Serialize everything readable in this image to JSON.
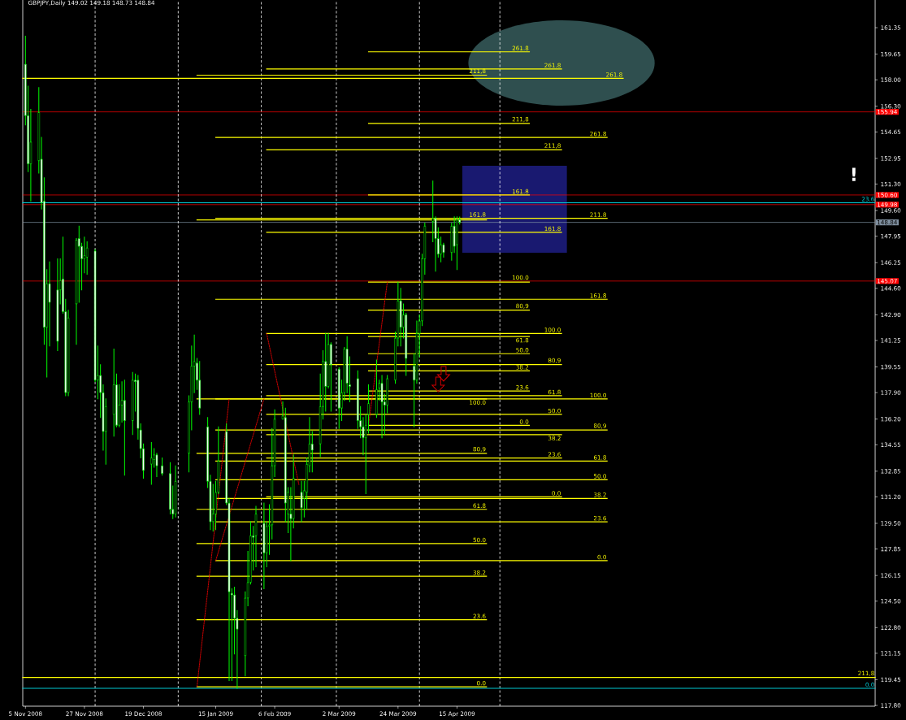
{
  "chart_data": {
    "type": "candlestick",
    "title": "GBPJPY,Daily 149.02 149.18 148.73 148.84",
    "color": "#00ff00",
    "x": [
      "2008-11-05",
      "2008-11-06",
      "2008-11-07",
      "2008-11-10",
      "2008-11-11",
      "2008-11-12",
      "2008-11-13",
      "2008-11-14",
      "2008-11-17",
      "2008-11-18",
      "2008-11-19",
      "2008-11-20",
      "2008-11-21",
      "2008-11-24",
      "2008-11-25",
      "2008-11-26",
      "2008-11-27",
      "2008-11-28",
      "2008-12-01",
      "2008-12-02",
      "2008-12-03",
      "2008-12-04",
      "2008-12-05",
      "2008-12-08",
      "2008-12-09",
      "2008-12-10",
      "2008-12-11",
      "2008-12-12",
      "2008-12-15",
      "2008-12-16",
      "2008-12-17",
      "2008-12-18",
      "2008-12-19",
      "2008-12-22",
      "2008-12-23",
      "2008-12-24",
      "2008-12-26",
      "2008-12-29",
      "2008-12-30",
      "2008-12-31",
      "2009-01-05",
      "2009-01-06",
      "2009-01-07",
      "2009-01-08",
      "2009-01-09",
      "2009-01-12",
      "2009-01-13",
      "2009-01-14",
      "2009-01-15",
      "2009-01-16",
      "2009-01-19",
      "2009-01-20",
      "2009-01-21",
      "2009-01-22",
      "2009-01-23",
      "2009-01-26",
      "2009-01-27",
      "2009-01-28",
      "2009-01-29",
      "2009-01-30",
      "2009-02-02",
      "2009-02-03",
      "2009-02-04",
      "2009-02-05",
      "2009-02-06",
      "2009-02-09",
      "2009-02-10",
      "2009-02-11",
      "2009-02-12",
      "2009-02-13",
      "2009-02-16",
      "2009-02-17",
      "2009-02-18",
      "2009-02-19",
      "2009-02-20",
      "2009-02-23",
      "2009-02-24",
      "2009-02-25",
      "2009-02-26",
      "2009-02-27",
      "2009-03-02",
      "2009-03-03",
      "2009-03-04",
      "2009-03-05",
      "2009-03-06",
      "2009-03-09",
      "2009-03-10",
      "2009-03-11",
      "2009-03-12",
      "2009-03-13",
      "2009-03-16",
      "2009-03-17",
      "2009-03-18",
      "2009-03-19",
      "2009-03-20",
      "2009-03-23",
      "2009-03-24",
      "2009-03-25",
      "2009-03-26",
      "2009-03-27",
      "2009-03-30",
      "2009-03-31",
      "2009-04-01",
      "2009-04-02",
      "2009-04-03",
      "2009-04-06",
      "2009-04-07",
      "2009-04-08",
      "2009-04-09",
      "2009-04-10",
      "2009-04-13",
      "2009-04-14",
      "2009-04-15",
      "2009-04-16"
    ],
    "ohlc": [
      [
        159.0,
        160.8,
        155.1,
        155.7
      ],
      [
        155.7,
        157.6,
        152.1,
        152.6
      ],
      [
        152.6,
        156.1,
        150.2,
        154.0
      ],
      [
        152.8,
        157.5,
        152.0,
        155.9
      ],
      [
        152.9,
        154.3,
        149.7,
        150.1
      ],
      [
        150.2,
        151.7,
        141.0,
        142.1
      ],
      [
        142.1,
        145.8,
        138.9,
        144.9
      ],
      [
        144.9,
        146.3,
        140.9,
        143.7
      ],
      [
        144.5,
        146.5,
        140.6,
        141.2
      ],
      [
        144.5,
        146.5,
        143.6,
        145.1
      ],
      [
        145.2,
        147.9,
        143.0,
        143.1
      ],
      [
        143.1,
        143.9,
        137.7,
        137.9
      ],
      [
        137.9,
        143.2,
        137.7,
        142.7
      ],
      [
        143.6,
        147.8,
        141.0,
        147.7
      ],
      [
        147.8,
        148.6,
        143.7,
        147.3
      ],
      [
        147.3,
        147.5,
        144.5,
        146.5
      ],
      [
        146.5,
        147.9,
        145.6,
        146.7
      ],
      [
        146.6,
        147.6,
        145.5,
        147.2
      ],
      [
        147.0,
        147.1,
        138.6,
        138.7
      ],
      [
        138.7,
        140.9,
        137.5,
        139.0
      ],
      [
        139.0,
        139.7,
        136.3,
        137.9
      ],
      [
        137.9,
        138.4,
        134.2,
        135.4
      ],
      [
        135.4,
        137.5,
        133.3,
        137.0
      ],
      [
        136.5,
        140.7,
        135.1,
        138.4
      ],
      [
        138.4,
        139.1,
        135.7,
        135.8
      ],
      [
        135.8,
        138.4,
        135.7,
        137.1
      ],
      [
        137.1,
        138.6,
        136.0,
        137.4
      ],
      [
        137.4,
        138.7,
        132.6,
        136.1
      ],
      [
        136.1,
        139.2,
        135.2,
        138.7
      ],
      [
        138.7,
        139.1,
        136.7,
        138.6
      ],
      [
        138.7,
        139.0,
        134.9,
        135.6
      ],
      [
        135.5,
        135.9,
        133.7,
        134.3
      ],
      [
        134.3,
        134.6,
        132.4,
        132.9
      ],
      [
        133.3,
        134.7,
        132.0,
        133.7
      ],
      [
        133.6,
        134.3,
        133.1,
        133.9
      ],
      [
        133.9,
        134.0,
        132.5,
        133.2
      ],
      [
        133.2,
        133.7,
        132.6,
        132.7
      ],
      [
        132.7,
        133.4,
        130.1,
        130.4
      ],
      [
        130.4,
        131.9,
        129.8,
        130.1
      ],
      [
        130.1,
        133.2,
        129.9,
        132.2
      ],
      [
        134.0,
        137.7,
        132.8,
        137.3
      ],
      [
        137.3,
        140.9,
        135.5,
        139.6
      ],
      [
        139.6,
        141.6,
        137.9,
        139.9
      ],
      [
        139.8,
        140.1,
        138.1,
        138.7
      ],
      [
        138.7,
        139.9,
        136.5,
        136.9
      ],
      [
        135.7,
        136.3,
        131.8,
        132.2
      ],
      [
        132.2,
        132.6,
        129.1,
        129.6
      ],
      [
        129.6,
        132.0,
        129.0,
        130.1
      ],
      [
        130.1,
        132.2,
        129.1,
        131.5
      ],
      [
        131.5,
        135.7,
        131.4,
        133.5
      ],
      [
        135.4,
        135.9,
        130.7,
        130.8
      ],
      [
        130.8,
        131.1,
        119.4,
        125.1
      ],
      [
        125.0,
        125.3,
        119.4,
        124.9
      ],
      [
        124.9,
        125.4,
        121.1,
        123.4
      ],
      [
        123.4,
        123.9,
        118.9,
        122.7
      ],
      [
        121.0,
        125.1,
        119.7,
        124.7
      ],
      [
        124.7,
        127.7,
        124.2,
        125.7
      ],
      [
        125.7,
        129.6,
        125.6,
        128.7
      ],
      [
        128.7,
        129.3,
        126.5,
        128.6
      ],
      [
        128.7,
        130.6,
        126.7,
        130.1
      ],
      [
        129.5,
        130.8,
        125.3,
        127.6
      ],
      [
        127.6,
        129.6,
        126.7,
        129.3
      ],
      [
        129.3,
        130.7,
        127.5,
        129.4
      ],
      [
        129.4,
        135.6,
        128.5,
        133.2
      ],
      [
        133.2,
        136.8,
        132.5,
        136.2
      ],
      [
        136.2,
        137.3,
        136.2,
        136.4
      ],
      [
        136.3,
        136.9,
        129.6,
        130.8
      ],
      [
        130.1,
        131.8,
        128.9,
        131.5
      ],
      [
        130.1,
        131.8,
        127.1,
        129.8
      ],
      [
        129.8,
        133.9,
        129.2,
        132.4
      ],
      [
        131.5,
        132.2,
        129.6,
        130.5
      ],
      [
        131.1,
        132.2,
        129.9,
        131.6
      ],
      [
        131.5,
        133.7,
        130.4,
        133.3
      ],
      [
        133.2,
        136.3,
        132.8,
        134.6
      ],
      [
        134.6,
        135.4,
        132.8,
        134.2
      ],
      [
        134.6,
        139.1,
        133.8,
        137.0
      ],
      [
        137.0,
        140.6,
        136.2,
        139.9
      ],
      [
        139.9,
        141.7,
        136.7,
        138.3
      ],
      [
        138.3,
        141.7,
        138.2,
        141.0
      ],
      [
        141.0,
        141.1,
        136.7,
        139.7
      ],
      [
        139.4,
        139.5,
        135.6,
        136.9
      ],
      [
        136.9,
        138.7,
        136.1,
        137.9
      ],
      [
        137.9,
        140.8,
        137.4,
        140.7
      ],
      [
        140.7,
        141.5,
        137.9,
        138.5
      ],
      [
        138.4,
        140.2,
        137.3,
        138.3
      ],
      [
        138.8,
        139.3,
        135.6,
        136.1
      ],
      [
        136.1,
        137.0,
        135.0,
        135.7
      ],
      [
        135.7,
        136.3,
        133.9,
        135.0
      ],
      [
        135.0,
        136.5,
        131.4,
        135.8
      ],
      [
        136.5,
        138.4,
        135.3,
        137.2
      ],
      [
        136.5,
        140.0,
        136.3,
        138.1
      ],
      [
        138.2,
        138.7,
        137.4,
        138.5
      ],
      [
        138.5,
        139.0,
        135.0,
        137.3
      ],
      [
        137.3,
        137.8,
        135.2,
        137.1
      ],
      [
        137.1,
        139.0,
        136.6,
        138.8
      ],
      [
        138.7,
        141.8,
        138.5,
        141.4
      ],
      [
        141.4,
        145.0,
        140.9,
        143.8
      ],
      [
        143.8,
        144.6,
        140.9,
        142.1
      ],
      [
        142.1,
        143.6,
        141.4,
        142.9
      ],
      [
        142.9,
        143.0,
        139.0,
        140.1
      ],
      [
        139.6,
        140.4,
        135.7,
        138.7
      ],
      [
        138.7,
        142.5,
        138.5,
        141.7
      ],
      [
        141.7,
        142.9,
        140.2,
        142.5
      ],
      [
        142.5,
        146.8,
        142.2,
        146.5
      ],
      [
        146.5,
        148.8,
        145.5,
        148.6
      ],
      [
        148.9,
        151.5,
        147.6,
        149.1
      ],
      [
        149.1,
        149.2,
        145.7,
        147.8
      ],
      [
        147.8,
        148.5,
        146.6,
        146.8
      ],
      [
        146.8,
        147.9,
        146.3,
        147.4
      ],
      [
        147.4,
        147.5,
        146.6,
        146.9
      ],
      [
        146.9,
        148.8,
        146.4,
        148.6
      ],
      [
        148.6,
        149.2,
        146.9,
        147.3
      ],
      [
        147.4,
        149.2,
        145.8,
        149.0
      ],
      [
        149.02,
        149.18,
        148.73,
        148.84
      ]
    ],
    "xlim": [
      "2008-11-04",
      "2009-09-18"
    ],
    "xticks": [
      {
        "value": "2008-11-05",
        "label": "5 Nov 2008"
      },
      {
        "value": "2008-11-27",
        "label": "27 Nov 2008"
      },
      {
        "value": "2008-12-19",
        "label": "19 Dec 2008"
      },
      {
        "value": "2009-01-15",
        "label": "15 Jan 2009"
      },
      {
        "value": "2009-02-06",
        "label": "6 Feb 2009"
      },
      {
        "value": "2009-03-02",
        "label": "2 Mar 2009"
      },
      {
        "value": "2009-03-24",
        "label": "24 Mar 2009"
      },
      {
        "value": "2009-04-15",
        "label": "15 Apr 2009"
      }
    ],
    "ylim": [
      117.75,
      163.13
    ],
    "yticks": [
      161.35,
      159.65,
      {
        "value": 158,
        "label": "158.00"
      },
      {
        "value": 156.3,
        "label": "156.30"
      },
      154.65,
      152.95,
      {
        "value": 151.3,
        "label": "151.30"
      },
      {
        "value": 149.6,
        "label": "149.60"
      },
      147.95,
      146.25,
      {
        "value": 144.6,
        "label": "144.60"
      },
      {
        "value": 142.9,
        "label": "142.90"
      },
      141.25,
      139.55,
      {
        "value": 137.9,
        "label": "137.90"
      },
      {
        "value": 136.2,
        "label": "136.20"
      },
      134.55,
      132.85,
      {
        "value": 131.2,
        "label": "131.20"
      },
      {
        "value": 129.5,
        "label": "129.50"
      },
      127.85,
      126.15,
      {
        "value": 124.5,
        "label": "124.50"
      },
      {
        "value": 122.8,
        "label": "122.80"
      },
      121.15,
      119.45,
      {
        "value": 117.8,
        "label": "117.80"
      }
    ],
    "series": [
      {
        "type": "line",
        "name": "0.0",
        "color": "#ffff00",
        "x": [
          "2009-01-08",
          "2009-04-26"
        ],
        "values": [
          119.0,
          119.0
        ]
      },
      {
        "type": "line",
        "name": "23.6",
        "color": "#ffff00",
        "x": [
          "2009-01-08",
          "2009-04-26"
        ],
        "values": [
          123.3,
          123.3
        ]
      },
      {
        "type": "line",
        "name": "38.2",
        "color": "#ffff00",
        "x": [
          "2009-01-08",
          "2009-04-26"
        ],
        "values": [
          126.1,
          126.1
        ]
      },
      {
        "type": "line",
        "name": "50.0",
        "color": "#ffff00",
        "x": [
          "2009-01-08",
          "2009-04-26"
        ],
        "values": [
          128.2,
          128.2
        ]
      },
      {
        "type": "line",
        "name": "61.8",
        "color": "#ffff00",
        "x": [
          "2009-01-08",
          "2009-04-26"
        ],
        "values": [
          130.4,
          130.4
        ]
      },
      {
        "type": "line",
        "name": "80,9",
        "color": "#ffff00",
        "x": [
          "2009-01-08",
          "2009-04-26"
        ],
        "values": [
          134.0,
          134.0
        ]
      },
      {
        "type": "line",
        "name": "100.0",
        "color": "#ffff00",
        "x": [
          "2009-01-08",
          "2009-04-26"
        ],
        "values": [
          137.5,
          137.5
        ]
      },
      {
        "type": "line",
        "name": "161.8",
        "color": "#ffff00",
        "x": [
          "2009-01-08",
          "2009-04-26"
        ],
        "values": [
          149.0,
          149.0
        ]
      },
      {
        "type": "line",
        "name": "211,8",
        "color": "#ffff00",
        "x": [
          "2009-01-08",
          "2009-04-26"
        ],
        "values": [
          158.3,
          158.3
        ]
      },
      {
        "type": "line",
        "name": "0.0",
        "color": "#ffff00",
        "x": [
          "2009-03-13",
          "2009-05-12"
        ],
        "values": [
          135.8,
          135.8
        ]
      },
      {
        "type": "line",
        "name": "23.6",
        "color": "#ffff00",
        "x": [
          "2009-03-13",
          "2009-05-12"
        ],
        "values": [
          138.0,
          138.0
        ]
      },
      {
        "type": "line",
        "name": "38.2",
        "color": "#ffff00",
        "x": [
          "2009-03-13",
          "2009-05-12"
        ],
        "values": [
          139.3,
          139.3
        ]
      },
      {
        "type": "line",
        "name": "50.0",
        "color": "#ffff00",
        "x": [
          "2009-03-13",
          "2009-05-12"
        ],
        "values": [
          140.4,
          140.4
        ]
      },
      {
        "type": "line",
        "name": "61.8",
        "color": "#ffff00",
        "x": [
          "2009-03-13",
          "2009-05-12"
        ],
        "values": [
          141.5,
          141.5
        ]
      },
      {
        "type": "line",
        "name": "80,9",
        "color": "#ffff00",
        "x": [
          "2009-03-13",
          "2009-05-12"
        ],
        "values": [
          143.2,
          143.2
        ]
      },
      {
        "type": "line",
        "name": "100.0",
        "color": "#ffff00",
        "x": [
          "2009-03-13",
          "2009-05-12"
        ],
        "values": [
          145.0,
          145.0
        ]
      },
      {
        "type": "line",
        "name": "161.8",
        "color": "#ffff00",
        "x": [
          "2009-03-13",
          "2009-05-12"
        ],
        "values": [
          150.6,
          150.6
        ]
      },
      {
        "type": "line",
        "name": "211,8",
        "color": "#ffff00",
        "x": [
          "2009-03-13",
          "2009-05-12"
        ],
        "values": [
          155.2,
          155.2
        ]
      },
      {
        "type": "line",
        "name": "261.8",
        "color": "#ffff00",
        "x": [
          "2009-03-13",
          "2009-05-12"
        ],
        "values": [
          159.8,
          159.8
        ]
      },
      {
        "type": "line",
        "name": "0.0",
        "color": "#ffff00",
        "x": [
          "2009-02-03",
          "2009-05-24"
        ],
        "values": [
          131.2,
          131.2
        ]
      },
      {
        "type": "line",
        "name": "23.6",
        "color": "#ffff00",
        "x": [
          "2009-02-03",
          "2009-05-24"
        ],
        "values": [
          133.7,
          133.7
        ]
      },
      {
        "type": "line",
        "name": "38.2",
        "color": "#ffff00",
        "x": [
          "2009-02-03",
          "2009-05-24"
        ],
        "values": [
          135.2,
          135.2
        ]
      },
      {
        "type": "line",
        "name": "50.0",
        "color": "#ffff00",
        "x": [
          "2009-02-03",
          "2009-05-24"
        ],
        "values": [
          136.5,
          136.5
        ]
      },
      {
        "type": "line",
        "name": "61.8",
        "color": "#ffff00",
        "x": [
          "2009-02-03",
          "2009-05-24"
        ],
        "values": [
          137.7,
          137.7
        ]
      },
      {
        "type": "line",
        "name": "80,9",
        "color": "#ffff00",
        "x": [
          "2009-02-03",
          "2009-05-24"
        ],
        "values": [
          139.7,
          139.7
        ]
      },
      {
        "type": "line",
        "name": "100.0",
        "color": "#ffff00",
        "x": [
          "2009-02-03",
          "2009-05-24"
        ],
        "values": [
          141.7,
          141.7
        ]
      },
      {
        "type": "line",
        "name": "161.8",
        "color": "#ffff00",
        "x": [
          "2009-02-03",
          "2009-05-24"
        ],
        "values": [
          148.2,
          148.2
        ]
      },
      {
        "type": "line",
        "name": "211,8",
        "color": "#ffff00",
        "x": [
          "2009-02-03",
          "2009-05-24"
        ],
        "values": [
          153.5,
          153.5
        ]
      },
      {
        "type": "line",
        "name": "261.8",
        "color": "#ffff00",
        "x": [
          "2009-02-03",
          "2009-05-24"
        ],
        "values": [
          158.7,
          158.7
        ]
      },
      {
        "type": "line",
        "name": "0.0",
        "color": "#ffff00",
        "x": [
          "2009-01-15",
          "2009-06-10"
        ],
        "values": [
          127.1,
          127.1
        ]
      },
      {
        "type": "line",
        "name": "23.6",
        "color": "#ffff00",
        "x": [
          "2009-01-15",
          "2009-06-10"
        ],
        "values": [
          129.6,
          129.6
        ]
      },
      {
        "type": "line",
        "name": "38.2",
        "color": "#ffff00",
        "x": [
          "2009-01-15",
          "2009-06-10"
        ],
        "values": [
          131.1,
          131.1
        ]
      },
      {
        "type": "line",
        "name": "50.0",
        "color": "#ffff00",
        "x": [
          "2009-01-15",
          "2009-06-10"
        ],
        "values": [
          132.3,
          132.3
        ]
      },
      {
        "type": "line",
        "name": "61.8",
        "color": "#ffff00",
        "x": [
          "2009-01-15",
          "2009-06-10"
        ],
        "values": [
          133.5,
          133.5
        ]
      },
      {
        "type": "line",
        "name": "80,9",
        "color": "#ffff00",
        "x": [
          "2009-01-15",
          "2009-06-10"
        ],
        "values": [
          135.5,
          135.5
        ]
      },
      {
        "type": "line",
        "name": "100.0",
        "color": "#ffff00",
        "x": [
          "2009-01-15",
          "2009-06-10"
        ],
        "values": [
          137.5,
          137.5
        ]
      },
      {
        "type": "line",
        "name": "161.8",
        "color": "#ffff00",
        "x": [
          "2009-01-15",
          "2009-06-10"
        ],
        "values": [
          143.9,
          143.9
        ]
      },
      {
        "type": "line",
        "name": "211.8",
        "color": "#ffff00",
        "x": [
          "2009-01-15",
          "2009-06-10"
        ],
        "values": [
          149.1,
          149.1
        ]
      },
      {
        "type": "line",
        "name": "261.8",
        "color": "#ffff00",
        "x": [
          "2009-01-15",
          "2009-06-10"
        ],
        "values": [
          154.3,
          154.3
        ]
      },
      {
        "type": "line",
        "name": "261.8",
        "color": "#ffff00",
        "x": [
          "2008-11-04",
          "2009-06-16"
        ],
        "values": [
          158.1,
          158.1
        ]
      },
      {
        "type": "line",
        "name": "211,8",
        "color": "#ffff00",
        "x": [
          "2008-11-04",
          "2009-09-18"
        ],
        "values": [
          119.6,
          119.6
        ]
      },
      {
        "type": "line",
        "name": "23.6",
        "color": "#00c8d2",
        "x": [
          "2008-11-04",
          "2009-09-18"
        ],
        "values": [
          150.1,
          150.1
        ]
      },
      {
        "type": "line",
        "name": "0.0",
        "color": "#00c8d2",
        "x": [
          "2008-11-04",
          "2009-09-18"
        ],
        "values": [
          118.9,
          118.9
        ]
      },
      {
        "type": "line",
        "color": "#ff0000",
        "line_style": "dotted",
        "x": [
          "2009-01-08",
          "2009-01-20"
        ],
        "values": [
          119.0,
          137.5
        ]
      },
      {
        "type": "line",
        "color": "#ff0000",
        "line_style": "dotted",
        "x": [
          "2009-01-15",
          "2009-02-02"
        ],
        "values": [
          127.1,
          137.5
        ]
      },
      {
        "type": "line",
        "color": "#ff0000",
        "line_style": "dotted",
        "x": [
          "2009-02-03",
          "2009-02-15"
        ],
        "values": [
          141.7,
          132.0
        ]
      },
      {
        "type": "line",
        "color": "#ff0000",
        "line_style": "dotted",
        "x": [
          "2009-03-13",
          "2009-03-20"
        ],
        "values": [
          135.8,
          145.0
        ]
      }
    ],
    "ref_lines": [
      {
        "axis": "y",
        "value": 155.94,
        "label": "155.94",
        "color": "#ff0000"
      },
      {
        "axis": "y",
        "value": 150.6,
        "label": "150.60",
        "color": "#ff0000"
      },
      {
        "axis": "y",
        "value": 149.98,
        "label": "149.98",
        "color": "#ff0000"
      },
      {
        "axis": "y",
        "value": 148.84,
        "label": "148.84",
        "color": "#8090a0"
      },
      {
        "axis": "y",
        "value": 145.07,
        "label": "145.07",
        "color": "#ff0000"
      },
      {
        "axis": "x",
        "value": "2008-12-01",
        "color": "#ffffff",
        "line_style": "dashed"
      },
      {
        "axis": "x",
        "value": "2009-01-01",
        "color": "#ffffff",
        "line_style": "dashed"
      },
      {
        "axis": "x",
        "value": "2009-02-01",
        "color": "#ffffff",
        "line_style": "dashed"
      },
      {
        "axis": "x",
        "value": "2009-03-01",
        "color": "#ffffff",
        "line_style": "dashed"
      },
      {
        "axis": "x",
        "value": "2009-04-01",
        "color": "#ffffff",
        "line_style": "dashed"
      },
      {
        "axis": "x",
        "value": "2009-05-01",
        "color": "#ffffff",
        "line_style": "dashed"
      }
    ],
    "annotations": [
      "!"
    ]
  }
}
